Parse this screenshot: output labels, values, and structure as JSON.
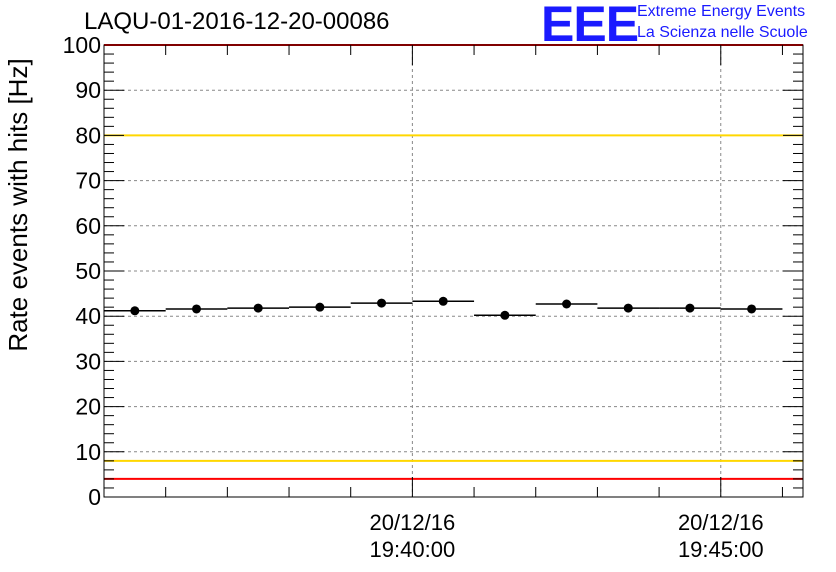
{
  "title": "LAQU-01-2016-12-20-00086",
  "logo": {
    "letters": "EEE",
    "line1": "Extreme Energy Events",
    "line2": "La Scienza nelle Scuole",
    "color": "#1a1aff"
  },
  "chart_data": {
    "type": "scatter",
    "title": "LAQU-01-2016-12-20-00086",
    "xlabel": "",
    "ylabel": "Rate events with hits [Hz]",
    "ylim": [
      0,
      100
    ],
    "yticks": [
      0,
      10,
      20,
      30,
      40,
      50,
      60,
      70,
      80,
      90,
      100
    ],
    "xticks": [
      {
        "line1": "20/12/16",
        "line2": "19:40:00",
        "seconds_from_start": 300
      },
      {
        "line1": "20/12/16",
        "line2": "19:45:00",
        "seconds_from_start": 600
      }
    ],
    "x_axis_start": "20/12/16 19:35:00",
    "x_axis_end": "20/12/16 19:46:20",
    "grid": true,
    "bin_width_seconds": 60,
    "points": [
      {
        "time": "19:35:30",
        "t": 30,
        "value": 41.2
      },
      {
        "time": "19:36:30",
        "t": 90,
        "value": 41.6
      },
      {
        "time": "19:37:30",
        "t": 150,
        "value": 41.8
      },
      {
        "time": "19:38:30",
        "t": 210,
        "value": 42.0
      },
      {
        "time": "19:39:30",
        "t": 270,
        "value": 42.9
      },
      {
        "time": "19:40:30",
        "t": 330,
        "value": 43.3
      },
      {
        "time": "19:41:30",
        "t": 390,
        "value": 40.2
      },
      {
        "time": "19:42:30",
        "t": 450,
        "value": 42.7
      },
      {
        "time": "19:43:30",
        "t": 510,
        "value": 41.8
      },
      {
        "time": "19:44:30",
        "t": 570,
        "value": 41.8
      },
      {
        "time": "19:45:30",
        "t": 630,
        "value": 41.6
      }
    ],
    "reference_lines": [
      {
        "name": "upper-red",
        "value": 100,
        "color": "#ff0000"
      },
      {
        "name": "upper-yellow",
        "value": 80,
        "color": "#ffd700"
      },
      {
        "name": "lower-yellow",
        "value": 8,
        "color": "#ffd700"
      },
      {
        "name": "lower-red",
        "value": 4,
        "color": "#ff0000"
      }
    ]
  }
}
